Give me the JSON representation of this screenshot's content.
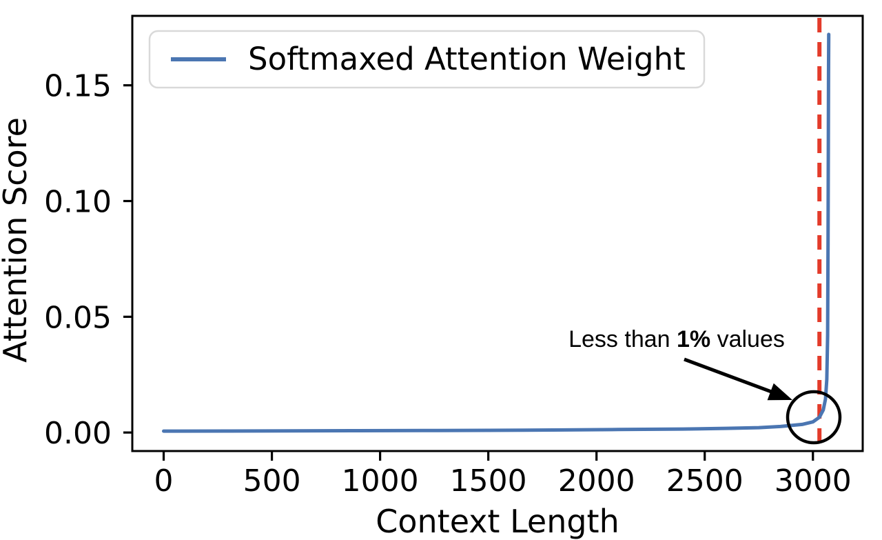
{
  "chart_data": {
    "type": "line",
    "title": "",
    "xlabel": "Context Length",
    "ylabel": "Attention Score",
    "xlim": [
      -145,
      3230
    ],
    "ylim": [
      -0.008,
      0.18
    ],
    "x_ticks": [
      0,
      500,
      1000,
      1500,
      2000,
      2500,
      3000
    ],
    "x_tick_labels": [
      "0",
      "500",
      "1000",
      "1500",
      "2000",
      "2500",
      "3000"
    ],
    "y_ticks": [
      0.0,
      0.05,
      0.1,
      0.15
    ],
    "y_tick_labels": [
      "0.00",
      "0.05",
      "0.10",
      "0.15"
    ],
    "grid": false,
    "legend": {
      "position": "upper left",
      "entries": [
        {
          "label": "Softmaxed Attention Weight",
          "color": "#4b76b2"
        }
      ]
    },
    "series": [
      {
        "name": "Softmaxed Attention Weight",
        "color": "#4b76b2",
        "points": [
          [
            0,
            0.0006
          ],
          [
            300,
            0.00065
          ],
          [
            600,
            0.0007
          ],
          [
            900,
            0.00078
          ],
          [
            1200,
            0.00085
          ],
          [
            1500,
            0.00095
          ],
          [
            1800,
            0.0011
          ],
          [
            2100,
            0.0013
          ],
          [
            2400,
            0.0015
          ],
          [
            2600,
            0.0018
          ],
          [
            2750,
            0.0021
          ],
          [
            2850,
            0.0026
          ],
          [
            2950,
            0.0035
          ],
          [
            3000,
            0.0046
          ],
          [
            3030,
            0.0066
          ],
          [
            3048,
            0.0098
          ],
          [
            3058,
            0.0145
          ],
          [
            3064,
            0.023
          ],
          [
            3068,
            0.042
          ],
          [
            3070,
            0.082
          ],
          [
            3071,
            0.122
          ],
          [
            3072,
            0.155
          ],
          [
            3073,
            0.172
          ]
        ]
      }
    ],
    "vline": {
      "x": 3030,
      "color": "#e33b2a",
      "style": "dashed"
    },
    "annotation": {
      "text_prefix": "Less than ",
      "text_bold": "1%",
      "text_suffix": " values",
      "points_to": "curve upturn below 1% of context positions"
    }
  }
}
